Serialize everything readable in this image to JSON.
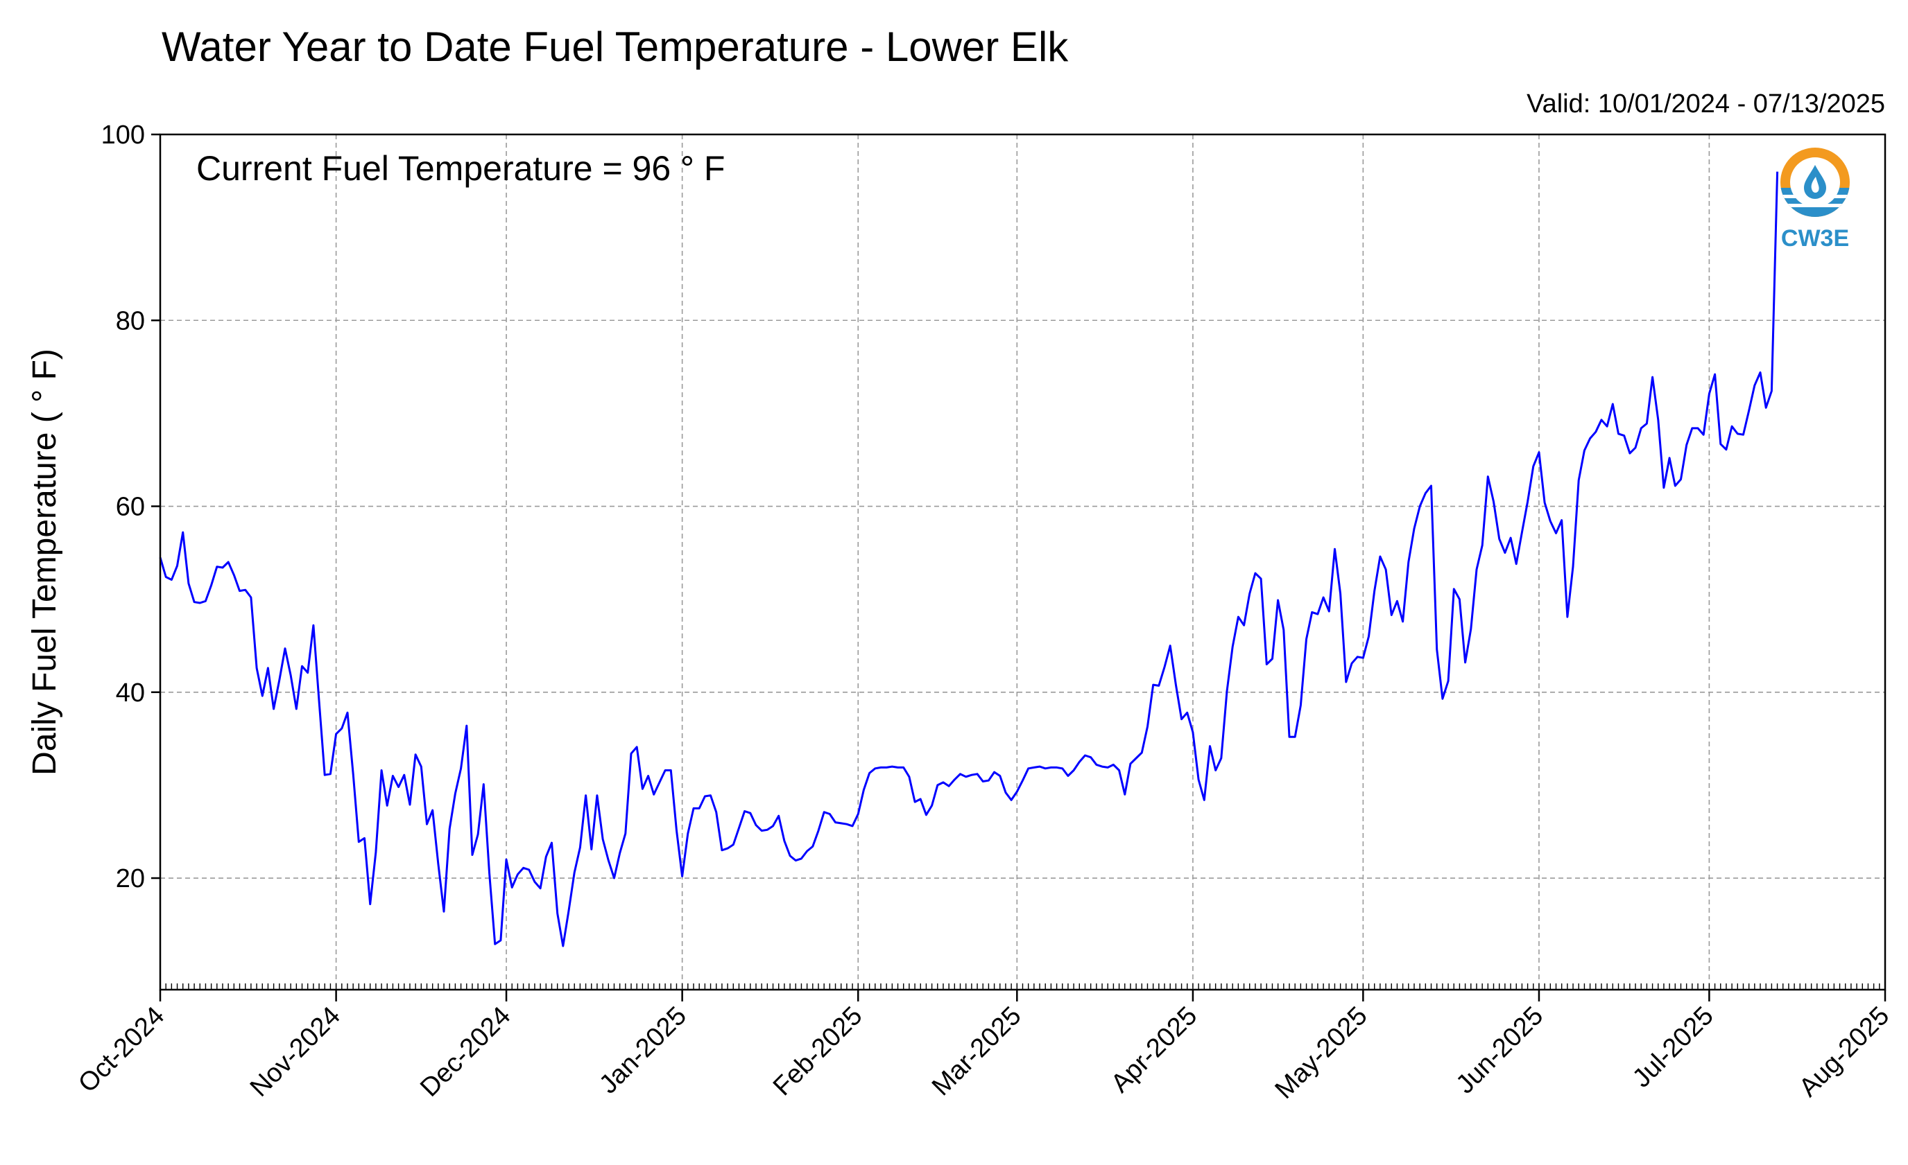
{
  "chart_data": {
    "type": "line",
    "title": "Water Year to Date Fuel Temperature - Lower Elk",
    "valid_text": "Valid: 10/01/2024 - 07/13/2025",
    "ylabel": "Daily Fuel Temperature ( ° F)",
    "annotation": "Current Fuel Temperature = 96  ° F",
    "logo_text": "CW3E",
    "x_start": "2024-10-01",
    "x_end": "2025-08-01",
    "ylim": [
      8,
      100
    ],
    "yticks": [
      20,
      40,
      60,
      80,
      100
    ],
    "xticks": [
      {
        "date": "2024-10-01",
        "label": "Oct-2024"
      },
      {
        "date": "2024-11-01",
        "label": "Nov-2024"
      },
      {
        "date": "2024-12-01",
        "label": "Dec-2024"
      },
      {
        "date": "2025-01-01",
        "label": "Jan-2025"
      },
      {
        "date": "2025-02-01",
        "label": "Feb-2025"
      },
      {
        "date": "2025-03-01",
        "label": "Mar-2025"
      },
      {
        "date": "2025-04-01",
        "label": "Apr-2025"
      },
      {
        "date": "2025-05-01",
        "label": "May-2025"
      },
      {
        "date": "2025-06-01",
        "label": "Jun-2025"
      },
      {
        "date": "2025-07-01",
        "label": "Jul-2025"
      },
      {
        "date": "2025-08-01",
        "label": "Aug-2025"
      }
    ],
    "grid": true,
    "line_color": "#0000ff",
    "series": [
      {
        "values": [
          54.5,
          52.4,
          52.1,
          53.6,
          57.2,
          51.7,
          49.7,
          49.6,
          49.8,
          51.5,
          53.5,
          53.4,
          54.0,
          52.6,
          50.9,
          51.0,
          50.2,
          42.6,
          39.6,
          42.6,
          38.2,
          41.3,
          44.7,
          41.8,
          38.2,
          42.8,
          42.1,
          47.2,
          39.0,
          31.1,
          31.2,
          35.5,
          36.1,
          37.8,
          31.2,
          23.9,
          24.3,
          17.2,
          22.8,
          31.6,
          27.8,
          31.0,
          29.8,
          31.1,
          27.9,
          33.3,
          32.0,
          25.8,
          27.3,
          21.5,
          16.4,
          25.3,
          29.1,
          31.8,
          36.4,
          22.5,
          24.7,
          30.1,
          20.6,
          12.9,
          13.3,
          22.0,
          19.0,
          20.4,
          21.1,
          20.9,
          19.6,
          18.9,
          22.3,
          23.8,
          16.2,
          12.7,
          16.5,
          20.6,
          23.3,
          28.9,
          23.1,
          28.9,
          24.2,
          21.9,
          20.0,
          22.7,
          24.8,
          33.4,
          34.1,
          29.6,
          31.0,
          29.0,
          30.3,
          31.6,
          31.6,
          25.1,
          20.2,
          24.8,
          27.5,
          27.5,
          28.8,
          28.9,
          27.1,
          23.0,
          23.2,
          23.6,
          25.4,
          27.2,
          27.0,
          25.7,
          25.1,
          25.2,
          25.6,
          26.7,
          24.0,
          22.4,
          21.9,
          22.1,
          22.9,
          23.4,
          25.1,
          27.1,
          26.9,
          26.0,
          25.9,
          25.8,
          25.6,
          26.9,
          29.5,
          31.3,
          31.8,
          31.9,
          31.9,
          32.0,
          31.9,
          31.9,
          30.9,
          28.2,
          28.5,
          26.8,
          27.8,
          30.0,
          30.3,
          29.9,
          30.6,
          31.2,
          30.9,
          31.1,
          31.2,
          30.4,
          30.5,
          31.4,
          31.0,
          29.2,
          28.4,
          29.3,
          30.5,
          31.8,
          31.9,
          32.0,
          31.8,
          31.9,
          31.9,
          31.8,
          31.0,
          31.6,
          32.5,
          33.2,
          33.0,
          32.2,
          32.0,
          31.9,
          32.2,
          31.6,
          29.0,
          32.3,
          32.9,
          33.5,
          36.3,
          40.8,
          40.7,
          42.7,
          45.0,
          40.8,
          37.1,
          37.8,
          35.7,
          30.6,
          28.4,
          34.2,
          31.6,
          32.9,
          40.1,
          44.9,
          48.1,
          47.2,
          50.6,
          52.8,
          52.2,
          43.0,
          43.6,
          49.9,
          46.7,
          35.2,
          35.2,
          38.6,
          45.7,
          48.6,
          48.4,
          50.2,
          48.7,
          55.4,
          50.6,
          41.1,
          43.1,
          43.8,
          43.7,
          46.0,
          50.9,
          54.6,
          53.2,
          48.3,
          49.8,
          47.6,
          54.0,
          57.6,
          60.0,
          61.4,
          62.2,
          44.6,
          39.3,
          41.2,
          51.1,
          50.0,
          43.2,
          46.8,
          53.2,
          55.8,
          63.2,
          60.5,
          56.5,
          55.0,
          56.6,
          53.8,
          57.2,
          60.5,
          64.3,
          65.8,
          60.4,
          58.4,
          57.1,
          58.5,
          48.1,
          53.5,
          62.8,
          66.0,
          67.3,
          68.0,
          69.3,
          68.6,
          71.0,
          67.8,
          67.6,
          65.7,
          66.3,
          68.4,
          68.9,
          73.9,
          69.3,
          62.0,
          65.2,
          62.2,
          62.9,
          66.6,
          68.4,
          68.4,
          67.7,
          72.1,
          74.2,
          66.7,
          66.1,
          68.6,
          67.8,
          67.7,
          70.3,
          73.0,
          74.4,
          70.6,
          72.4,
          96.0
        ]
      }
    ]
  }
}
